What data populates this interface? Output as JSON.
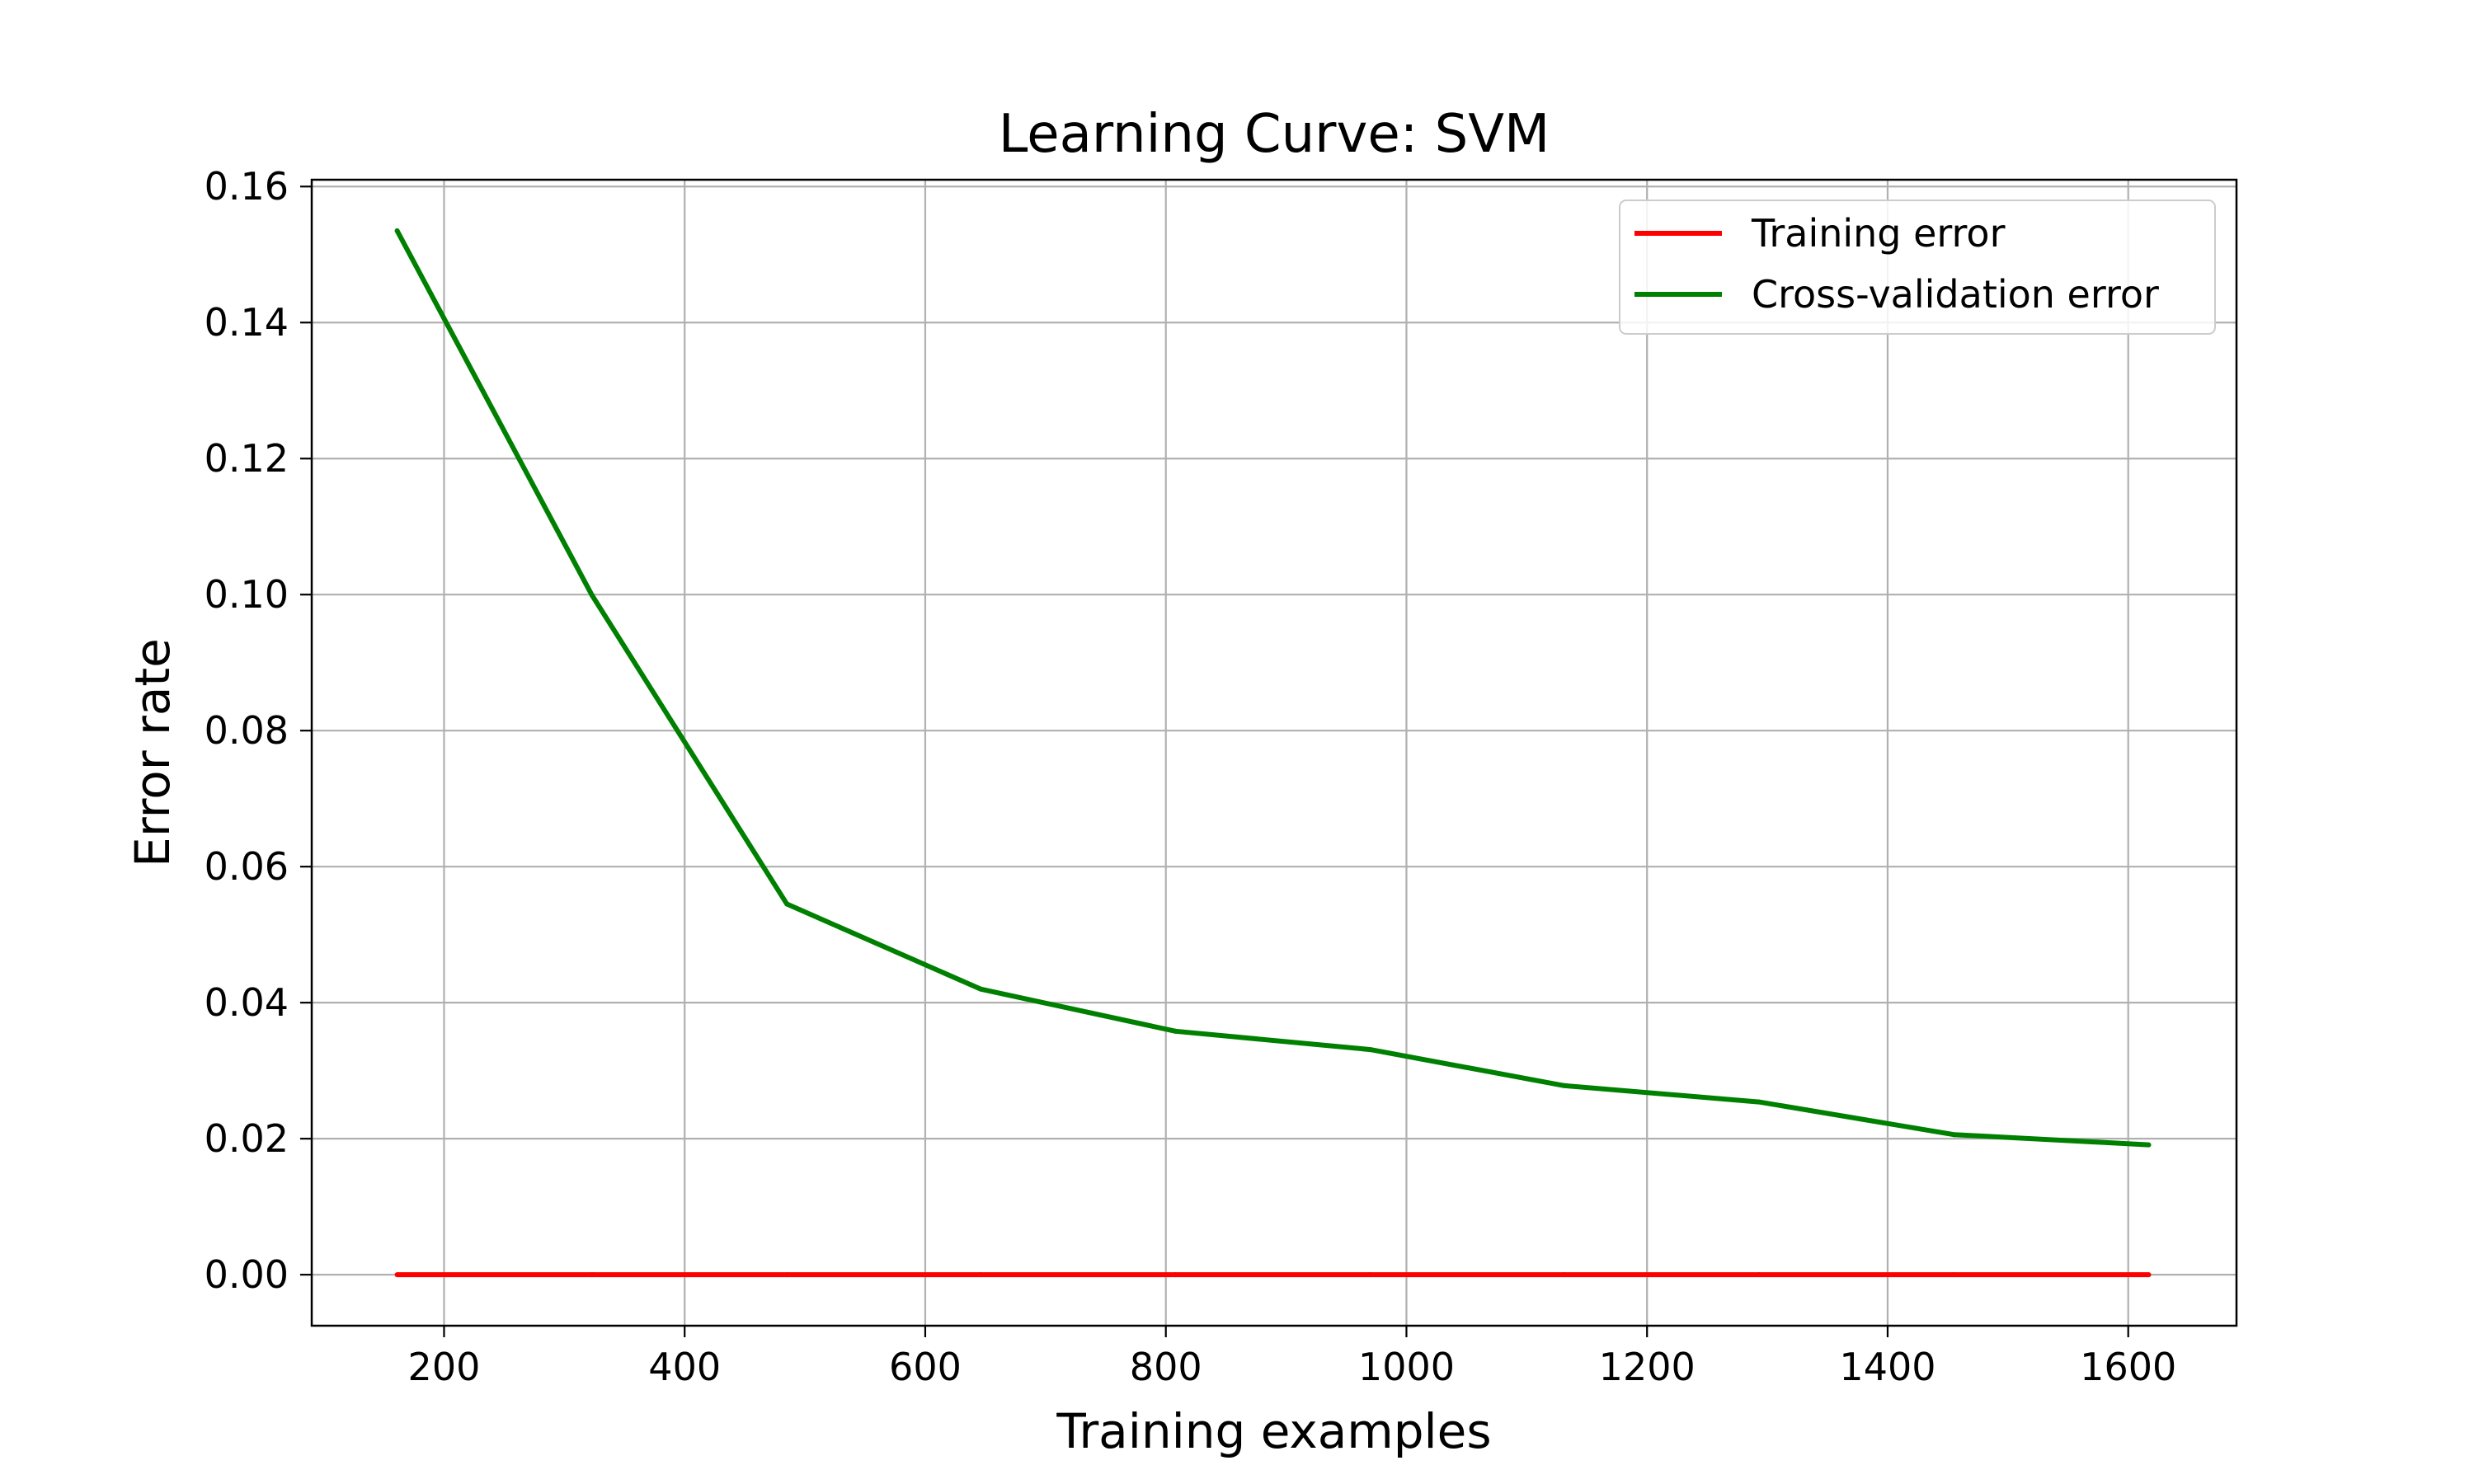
{
  "chart_data": {
    "type": "line",
    "title": "Learning Curve: SVM",
    "xlabel": "Training examples",
    "ylabel": "Error rate",
    "x": [
      161,
      323,
      485,
      646,
      808,
      970,
      1131,
      1293,
      1455,
      1617
    ],
    "xlim": [
      90,
      1690
    ],
    "ylim": [
      -0.0075,
      0.161
    ],
    "xticks": [
      200,
      400,
      600,
      800,
      1000,
      1200,
      1400,
      1600
    ],
    "xtick_labels": [
      "200",
      "400",
      "600",
      "800",
      "1000",
      "1200",
      "1400",
      "1600"
    ],
    "yticks": [
      0.0,
      0.02,
      0.04,
      0.06,
      0.08,
      0.1,
      0.12,
      0.14,
      0.16
    ],
    "ytick_labels": [
      "0.00",
      "0.02",
      "0.04",
      "0.06",
      "0.08",
      "0.10",
      "0.12",
      "0.14",
      "0.16"
    ],
    "grid": true,
    "legend_position": "top-right",
    "series": [
      {
        "name": "Training error",
        "color": "#ff0000",
        "values": [
          0,
          0,
          0,
          0,
          0,
          0,
          0,
          0,
          0,
          0
        ]
      },
      {
        "name": "Cross-validation error",
        "color": "#008000",
        "values": [
          0.1535,
          0.0999,
          0.0545,
          0.042,
          0.0358,
          0.0331,
          0.0278,
          0.0254,
          0.0206,
          0.0191
        ]
      }
    ]
  }
}
